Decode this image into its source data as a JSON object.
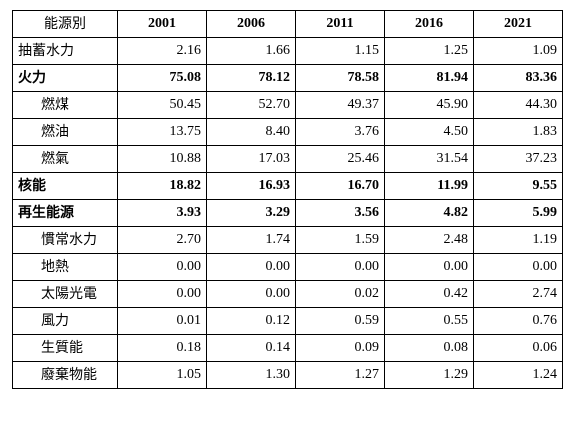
{
  "header": {
    "label": "能源別",
    "years": [
      "2001",
      "2006",
      "2011",
      "2016",
      "2021"
    ]
  },
  "rows": [
    {
      "label": "抽蓄水力",
      "bold": false,
      "indent": false,
      "values": [
        "2.16",
        "1.66",
        "1.15",
        "1.25",
        "1.09"
      ]
    },
    {
      "label": "火力",
      "bold": true,
      "indent": false,
      "values": [
        "75.08",
        "78.12",
        "78.58",
        "81.94",
        "83.36"
      ]
    },
    {
      "label": "燃煤",
      "bold": false,
      "indent": true,
      "values": [
        "50.45",
        "52.70",
        "49.37",
        "45.90",
        "44.30"
      ]
    },
    {
      "label": "燃油",
      "bold": false,
      "indent": true,
      "values": [
        "13.75",
        "8.40",
        "3.76",
        "4.50",
        "1.83"
      ]
    },
    {
      "label": "燃氣",
      "bold": false,
      "indent": true,
      "values": [
        "10.88",
        "17.03",
        "25.46",
        "31.54",
        "37.23"
      ]
    },
    {
      "label": "核能",
      "bold": true,
      "indent": false,
      "values": [
        "18.82",
        "16.93",
        "16.70",
        "11.99",
        "9.55"
      ]
    },
    {
      "label": "再生能源",
      "bold": true,
      "indent": false,
      "values": [
        "3.93",
        "3.29",
        "3.56",
        "4.82",
        "5.99"
      ]
    },
    {
      "label": "慣常水力",
      "bold": false,
      "indent": true,
      "values": [
        "2.70",
        "1.74",
        "1.59",
        "2.48",
        "1.19"
      ]
    },
    {
      "label": "地熱",
      "bold": false,
      "indent": true,
      "values": [
        "0.00",
        "0.00",
        "0.00",
        "0.00",
        "0.00"
      ]
    },
    {
      "label": "太陽光電",
      "bold": false,
      "indent": true,
      "values": [
        "0.00",
        "0.00",
        "0.02",
        "0.42",
        "2.74"
      ]
    },
    {
      "label": "風力",
      "bold": false,
      "indent": true,
      "values": [
        "0.01",
        "0.12",
        "0.59",
        "0.55",
        "0.76"
      ]
    },
    {
      "label": "生質能",
      "bold": false,
      "indent": true,
      "values": [
        "0.18",
        "0.14",
        "0.09",
        "0.08",
        "0.06"
      ]
    },
    {
      "label": "廢棄物能",
      "bold": false,
      "indent": true,
      "values": [
        "1.05",
        "1.30",
        "1.27",
        "1.29",
        "1.24"
      ]
    }
  ]
}
